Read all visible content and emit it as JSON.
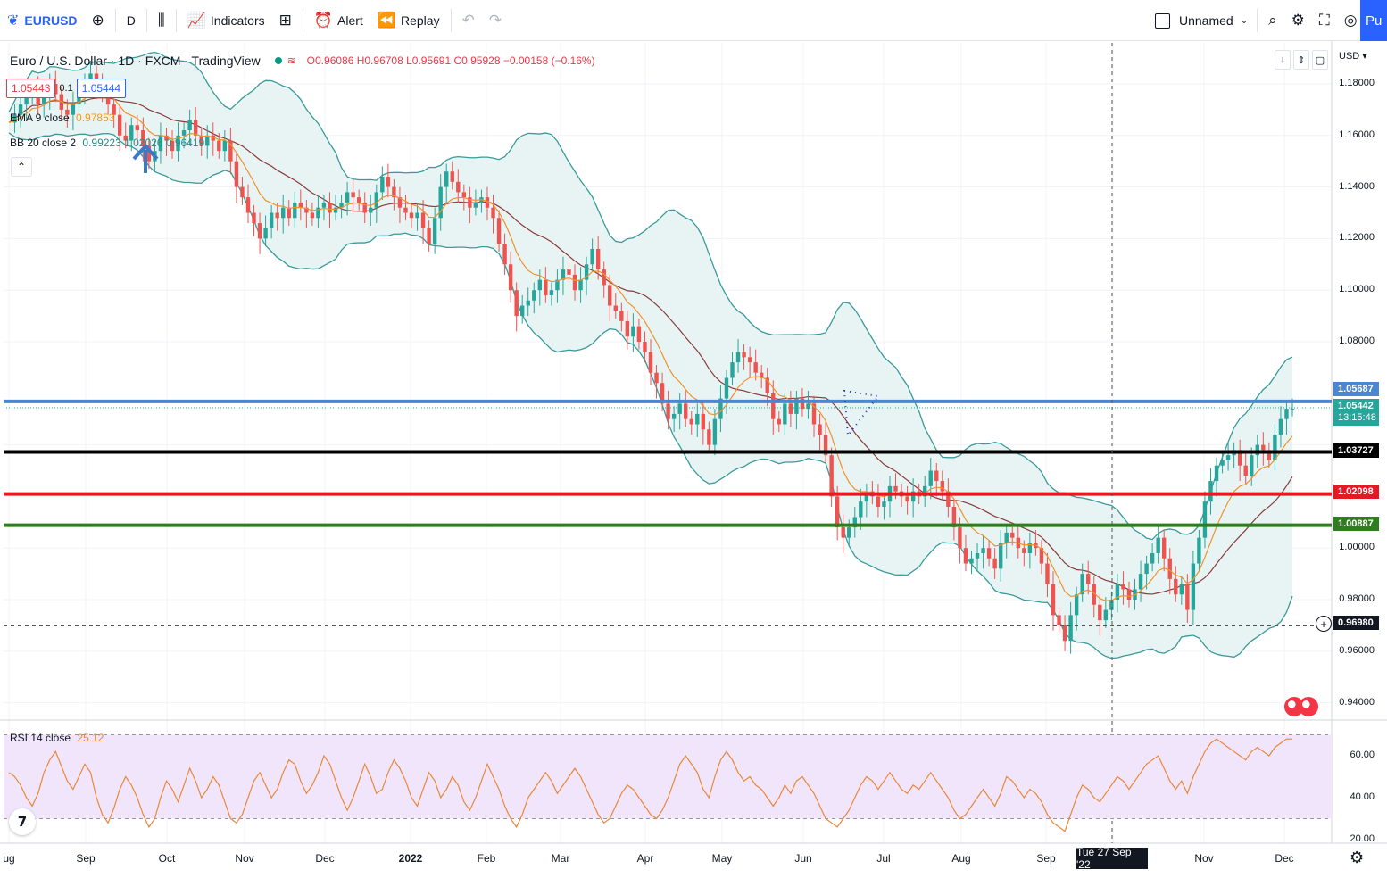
{
  "toolbar": {
    "symbol": "EURUSD",
    "interval": "D",
    "indicators_label": "Indicators",
    "alert_label": "Alert",
    "replay_label": "Replay",
    "layout_name": "Unnamed",
    "publish_label": "Pu"
  },
  "legend": {
    "title": "Euro / U.S. Dollar · 1D · FXCM · TradingView",
    "ohlc": "O0.96086 H0.96708 L0.95691 C0.95928 −0.00158 (−0.16%)",
    "bid": "1.05443",
    "spread": "0.1",
    "ask": "1.05444",
    "ema_label": "EMA 9 close",
    "ema_value": "0.97853",
    "bb_label": "BB 20 close 2",
    "bb_values": "0.99223  1.02026  0.96419",
    "rsi_label": "RSI 14 close",
    "rsi_value": "25.12"
  },
  "price_axis": {
    "currency": "USD",
    "ticks": [
      "1.18000",
      "1.16000",
      "1.14000",
      "1.12000",
      "1.10000",
      "1.08000",
      "1.00000",
      "0.98000",
      "0.96000",
      "0.94000"
    ],
    "tags": {
      "blue": "1.05687",
      "current": "1.05442",
      "countdown": "13:15:48",
      "black": "1.03727",
      "red": "1.02098",
      "green": "1.00887",
      "crosshair": "0.96980"
    }
  },
  "rsi_axis": {
    "ticks": [
      "60.00",
      "40.00",
      "20.00"
    ]
  },
  "time_axis": {
    "labels": [
      "ug",
      "Sep",
      "Oct",
      "Nov",
      "Dec",
      "2022",
      "Feb",
      "Mar",
      "Apr",
      "May",
      "Jun",
      "Jul",
      "Aug",
      "Sep",
      "Nov",
      "Dec"
    ],
    "crosshair_date": "Tue 27 Sep '22"
  },
  "colors": {
    "blue_line": "#4a86d1",
    "black_line": "#000000",
    "red_line": "#e01b24",
    "green_line": "#2e7d1e",
    "bb_band": "#3a9a9a",
    "bb_fill": "#e6f3f3",
    "ema": "#f0922b",
    "basis": "#8b3a3a",
    "rsi_line": "#e8883a",
    "rsi_bg": "#f1e5fb",
    "up_candle": "#26a69a",
    "down_candle": "#ef5350"
  },
  "chart_data": {
    "type": "candlestick",
    "ylim": [
      0.925,
      1.19
    ],
    "horizontal_levels": [
      1.05687,
      1.03727,
      1.02098,
      1.00887
    ],
    "close_series": [
      1.165,
      1.168,
      1.172,
      1.175,
      1.178,
      1.172,
      1.176,
      1.18,
      1.176,
      1.17,
      1.168,
      1.172,
      1.176,
      1.18,
      1.184,
      1.18,
      1.176,
      1.172,
      1.168,
      1.16,
      1.158,
      1.164,
      1.162,
      1.156,
      1.15,
      1.154,
      1.16,
      1.158,
      1.154,
      1.16,
      1.162,
      1.166,
      1.16,
      1.156,
      1.16,
      1.158,
      1.154,
      1.158,
      1.15,
      1.14,
      1.136,
      1.13,
      1.126,
      1.12,
      1.124,
      1.13,
      1.128,
      1.132,
      1.128,
      1.134,
      1.132,
      1.13,
      1.128,
      1.132,
      1.134,
      1.13,
      1.132,
      1.134,
      1.138,
      1.136,
      1.134,
      1.13,
      1.132,
      1.138,
      1.144,
      1.14,
      1.136,
      1.132,
      1.13,
      1.128,
      1.13,
      1.124,
      1.118,
      1.128,
      1.14,
      1.146,
      1.142,
      1.138,
      1.136,
      1.132,
      1.134,
      1.136,
      1.132,
      1.128,
      1.118,
      1.11,
      1.1,
      1.09,
      1.094,
      1.096,
      1.1,
      1.104,
      1.098,
      1.1,
      1.104,
      1.108,
      1.106,
      1.1,
      1.104,
      1.11,
      1.116,
      1.108,
      1.102,
      1.094,
      1.092,
      1.088,
      1.082,
      1.086,
      1.08,
      1.076,
      1.068,
      1.064,
      1.056,
      1.05,
      1.052,
      1.056,
      1.05,
      1.048,
      1.052,
      1.046,
      1.04,
      1.05,
      1.058,
      1.066,
      1.072,
      1.076,
      1.074,
      1.072,
      1.068,
      1.066,
      1.06,
      1.05,
      1.048,
      1.056,
      1.052,
      1.058,
      1.054,
      1.056,
      1.048,
      1.044,
      1.036,
      1.02,
      1.008,
      1.004,
      1.008,
      1.012,
      1.018,
      1.022,
      1.02,
      1.016,
      1.018,
      1.024,
      1.022,
      1.02,
      1.018,
      1.022,
      1.02,
      1.024,
      1.03,
      1.026,
      1.022,
      1.016,
      1.008,
      1.0,
      0.994,
      0.996,
      0.998,
      1.0,
      0.996,
      0.992,
      1.002,
      1.006,
      1.004,
      1.0,
      0.998,
      1.002,
      1.0,
      0.994,
      0.986,
      0.974,
      0.97,
      0.964,
      0.974,
      0.982,
      0.99,
      0.986,
      0.978,
      0.972,
      0.976,
      0.98,
      0.986,
      0.984,
      0.98,
      0.984,
      0.99,
      0.994,
      0.998,
      1.004,
      0.996,
      0.988,
      0.982,
      0.986,
      0.976,
      0.994,
      1.004,
      1.018,
      1.026,
      1.032,
      1.034,
      1.036,
      1.038,
      1.032,
      1.028,
      1.036,
      1.04,
      1.038,
      1.034,
      1.044,
      1.05,
      1.054,
      1.054
    ],
    "rsi_values": [
      52,
      50,
      46,
      40,
      36,
      42,
      52,
      58,
      62,
      55,
      48,
      44,
      50,
      56,
      52,
      40,
      32,
      28,
      35,
      44,
      50,
      46,
      40,
      32,
      26,
      30,
      40,
      48,
      44,
      38,
      46,
      54,
      48,
      40,
      44,
      50,
      46,
      38,
      30,
      28,
      32,
      40,
      48,
      52,
      46,
      40,
      44,
      52,
      58,
      56,
      48,
      42,
      46,
      52,
      60,
      56,
      48,
      40,
      34,
      40,
      48,
      56,
      50,
      42,
      44,
      52,
      58,
      54,
      48,
      40,
      36,
      44,
      52,
      48,
      40,
      44,
      50,
      46,
      38,
      34,
      40,
      48,
      56,
      50,
      44,
      36,
      30,
      26,
      32,
      40,
      44,
      48,
      52,
      48,
      42,
      46,
      50,
      54,
      50,
      44,
      38,
      32,
      28,
      30,
      36,
      42,
      46,
      44,
      40,
      36,
      32,
      30,
      34,
      40,
      48,
      56,
      60,
      56,
      52,
      44,
      40,
      50,
      58,
      62,
      58,
      52,
      48,
      50,
      46,
      44,
      40,
      36,
      40,
      46,
      42,
      48,
      50,
      46,
      42,
      36,
      30,
      28,
      26,
      30,
      34,
      40,
      46,
      50,
      48,
      44,
      48,
      52,
      48,
      44,
      42,
      46,
      44,
      48,
      52,
      48,
      44,
      40,
      34,
      30,
      32,
      36,
      40,
      44,
      40,
      36,
      42,
      50,
      48,
      44,
      40,
      44,
      42,
      38,
      32,
      28,
      26,
      24,
      32,
      40,
      46,
      44,
      40,
      38,
      42,
      46,
      50,
      48,
      44,
      48,
      52,
      56,
      58,
      60,
      54,
      48,
      44,
      48,
      42,
      50,
      56,
      62,
      66,
      68,
      66,
      64,
      62,
      60,
      58,
      62,
      64,
      62,
      60,
      64,
      66,
      68,
      68
    ]
  }
}
